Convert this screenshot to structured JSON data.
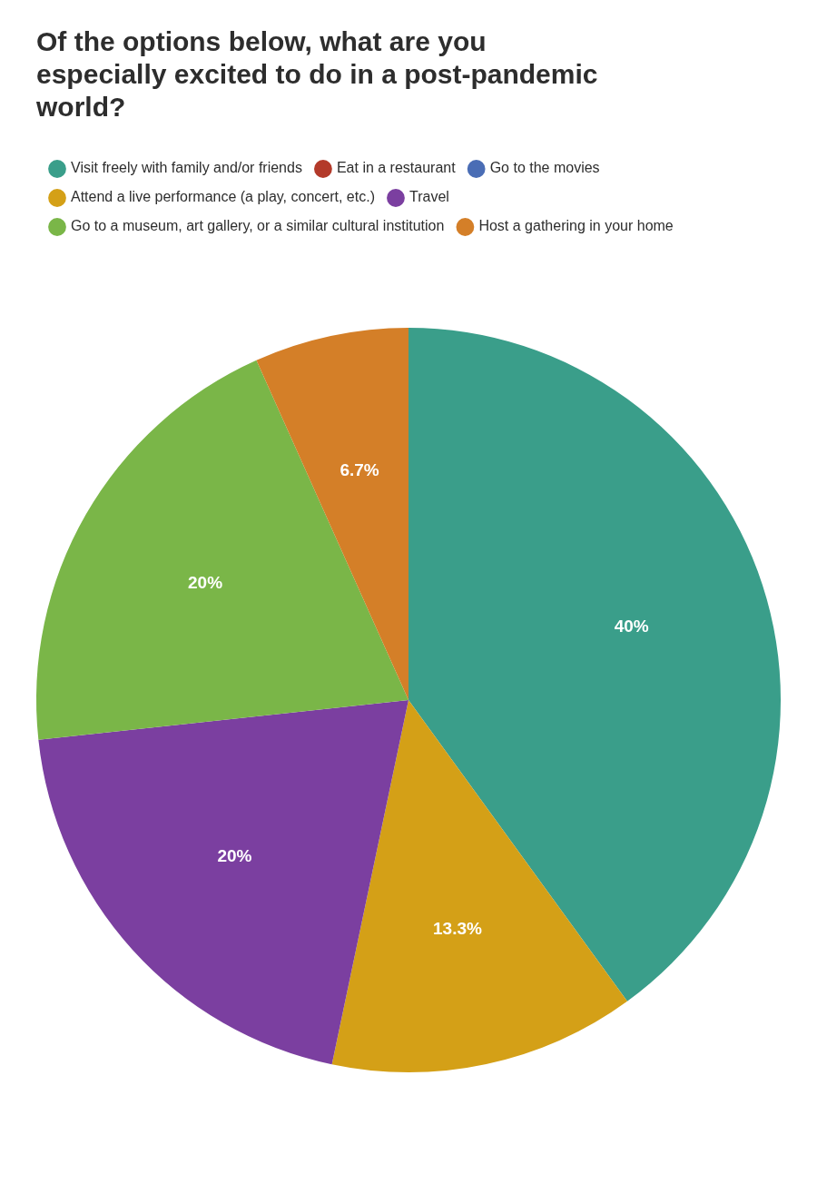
{
  "chart_data": {
    "type": "pie",
    "title": "Of the options below, what are you\nespecially excited to do in a post-pandemic\nworld?",
    "categories": [
      "Visit freely with family and/or friends",
      "Eat in a restaurant",
      "Go to the movies",
      "Attend a live performance (a play, concert, etc.)",
      "Travel",
      "Go to a museum, art gallery, or a similar cultural institution",
      "Host a gathering in your home"
    ],
    "values": [
      40.0,
      null,
      null,
      13.3,
      20.0,
      20.0,
      6.7
    ],
    "value_labels": [
      "40%",
      null,
      null,
      "13.3%",
      "20%",
      "20%",
      "6.7%"
    ],
    "colors": [
      "#3a9e8a",
      "#b33a2a",
      "#4a6db5",
      "#d4a017",
      "#7b3fa0",
      "#7ab648",
      "#d47f28"
    ],
    "legend": "top",
    "data_labels": true
  }
}
